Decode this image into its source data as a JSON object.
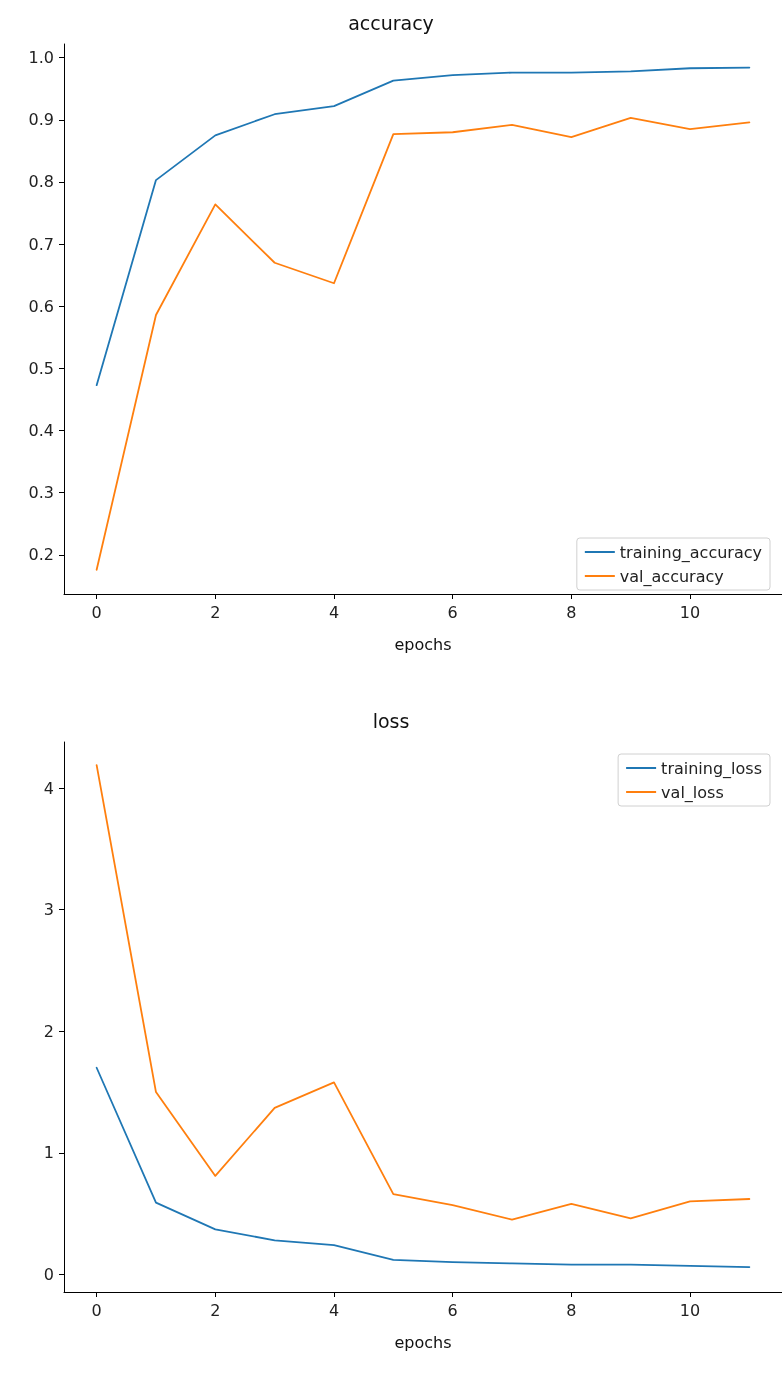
{
  "chart_data": [
    {
      "type": "line",
      "title": "accuracy",
      "xlabel": "epochs",
      "x": [
        0,
        1,
        2,
        3,
        4,
        5,
        6,
        7,
        8,
        9,
        10,
        11
      ],
      "xlim": [
        -0.55,
        11.55
      ],
      "xticks": [
        0,
        2,
        4,
        6,
        8,
        10
      ],
      "ylim": [
        0.137,
        1.022
      ],
      "yticks": [
        {
          "value": 0.2,
          "label": "0.2"
        },
        {
          "value": 0.3,
          "label": "0.3"
        },
        {
          "value": 0.4,
          "label": "0.4"
        },
        {
          "value": 0.5,
          "label": "0.5"
        },
        {
          "value": 0.6,
          "label": "0.6"
        },
        {
          "value": 0.7,
          "label": "0.7"
        },
        {
          "value": 0.8,
          "label": "0.8"
        },
        {
          "value": 0.9,
          "label": "0.9"
        },
        {
          "value": 1.0,
          "label": "1.0"
        }
      ],
      "grid": false,
      "legend": "bottom right",
      "marker": "none",
      "line_style": "solid",
      "series": [
        {
          "name": "training_accuracy",
          "color": "#1f77b4",
          "values": [
            0.473,
            0.803,
            0.875,
            0.909,
            0.922,
            0.963,
            0.972,
            0.976,
            0.976,
            0.978,
            0.983,
            0.984
          ]
        },
        {
          "name": "val_accuracy",
          "color": "#ff7f0e",
          "values": [
            0.176,
            0.586,
            0.764,
            0.67,
            0.637,
            0.877,
            0.88,
            0.892,
            0.872,
            0.903,
            0.885,
            0.896
          ]
        }
      ]
    },
    {
      "type": "line",
      "title": "loss",
      "xlabel": "epochs",
      "x": [
        0,
        1,
        2,
        3,
        4,
        5,
        6,
        7,
        8,
        9,
        10,
        11
      ],
      "xlim": [
        -0.55,
        11.55
      ],
      "xticks": [
        0,
        2,
        4,
        6,
        8,
        10
      ],
      "ylim": [
        -0.145,
        4.38
      ],
      "yticks": [
        0,
        1,
        2,
        3,
        4
      ],
      "grid": false,
      "legend": "top right",
      "marker": "none",
      "line_style": "solid",
      "series": [
        {
          "name": "training_loss",
          "color": "#1f77b4",
          "values": [
            1.7,
            0.59,
            0.37,
            0.28,
            0.24,
            0.12,
            0.1,
            0.09,
            0.08,
            0.08,
            0.07,
            0.06
          ]
        },
        {
          "name": "val_loss",
          "color": "#ff7f0e",
          "values": [
            4.19,
            1.5,
            0.81,
            1.37,
            1.58,
            0.66,
            0.57,
            0.45,
            0.58,
            0.46,
            0.6,
            0.62
          ]
        }
      ]
    }
  ]
}
